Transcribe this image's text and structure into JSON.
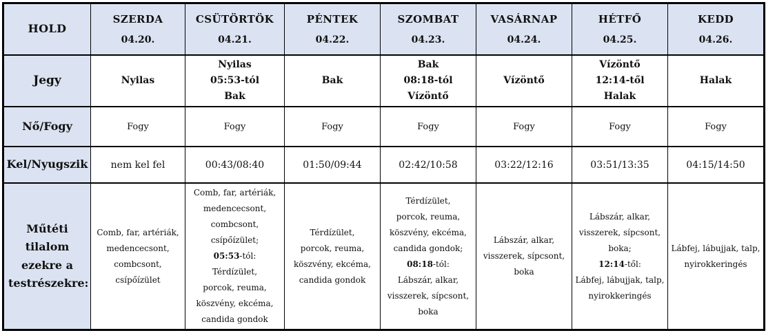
{
  "colors": {
    "header_bg": "#dbe3f2",
    "border": "#000000",
    "cell_bg": "#ffffff",
    "text": "#111111"
  },
  "table": {
    "corner_label": "HOLD",
    "columns": [
      {
        "id": "szerda",
        "day": "SZERDA",
        "date": "04.20."
      },
      {
        "id": "csutortok",
        "day": "CSÜTÖRTÖK",
        "date": "04.21."
      },
      {
        "id": "pentek",
        "day": "PÉNTEK",
        "date": "04.22."
      },
      {
        "id": "szombat",
        "day": "SZOMBAT",
        "date": "04.23."
      },
      {
        "id": "vasarnap",
        "day": "VASÁRNAP",
        "date": "04.24."
      },
      {
        "id": "hetfo",
        "day": "HÉTFŐ",
        "date": "04.25."
      },
      {
        "id": "kedd",
        "day": "KEDD",
        "date": "04.26."
      }
    ],
    "rows": [
      {
        "id": "jegy",
        "label": "Jegy",
        "cells": [
          [
            "Nyilas"
          ],
          [
            "Nyilas",
            "05:53-tól",
            "Bak"
          ],
          [
            "Bak"
          ],
          [
            "Bak",
            "08:18-tól",
            "Vízöntő"
          ],
          [
            "Vízöntő"
          ],
          [
            "Vízöntő",
            "12:14-től",
            "Halak"
          ],
          [
            "Halak"
          ]
        ]
      },
      {
        "id": "no-fogy",
        "label": "Nő/Fogy",
        "cells": [
          [
            "Fogy"
          ],
          [
            "Fogy"
          ],
          [
            "Fogy"
          ],
          [
            "Fogy"
          ],
          [
            "Fogy"
          ],
          [
            "Fogy"
          ],
          [
            "Fogy"
          ]
        ]
      },
      {
        "id": "kel-nyugszik",
        "label": "Kel/Nyugszik",
        "cells": [
          [
            "nem kel fel"
          ],
          [
            "00:43/08:40"
          ],
          [
            "01:50/09:44"
          ],
          [
            "02:42/10:58"
          ],
          [
            "03:22/12:16"
          ],
          [
            "03:51/13:35"
          ],
          [
            "04:15/14:50"
          ]
        ]
      },
      {
        "id": "muteti-tilalom",
        "label": "Műtéti tilalom ezekre a testrészekre:",
        "cells": [
          [
            "Comb, far, artériák,",
            "medencecsont,",
            "combcsont,",
            "csípőízület"
          ],
          [
            "Comb, far, artériák,",
            "medencecsont,",
            "combcsont,",
            "csípőízület;",
            [
              {
                "t": "05:53",
                "b": true
              },
              {
                "t": "-tól:",
                "b": false
              }
            ],
            "Térdízület,",
            "porcok, reuma,",
            "köszvény, ekcéma,",
            "candida gondok"
          ],
          [
            "Térdízület,",
            "porcok, reuma,",
            "köszvény, ekcéma,",
            "candida gondok"
          ],
          [
            "Térdízület,",
            "porcok, reuma,",
            "köszvény, ekcéma,",
            "candida gondok;",
            [
              {
                "t": "08:18",
                "b": true
              },
              {
                "t": "-tól:",
                "b": false
              }
            ],
            "Lábszár, alkar,",
            "visszerek, sípcsont,",
            "boka"
          ],
          [
            "Lábszár, alkar,",
            "visszerek, sípcsont,",
            "boka"
          ],
          [
            "Lábszár, alkar,",
            "visszerek, sípcsont,",
            "boka;",
            [
              {
                "t": "12:14",
                "b": true
              },
              {
                "t": "-től:",
                "b": false
              }
            ],
            "Lábfej, lábujjak, talp,",
            "nyirokkeringés"
          ],
          [
            "Lábfej, lábujjak, talp,",
            "nyirokkeringés"
          ]
        ]
      }
    ]
  }
}
